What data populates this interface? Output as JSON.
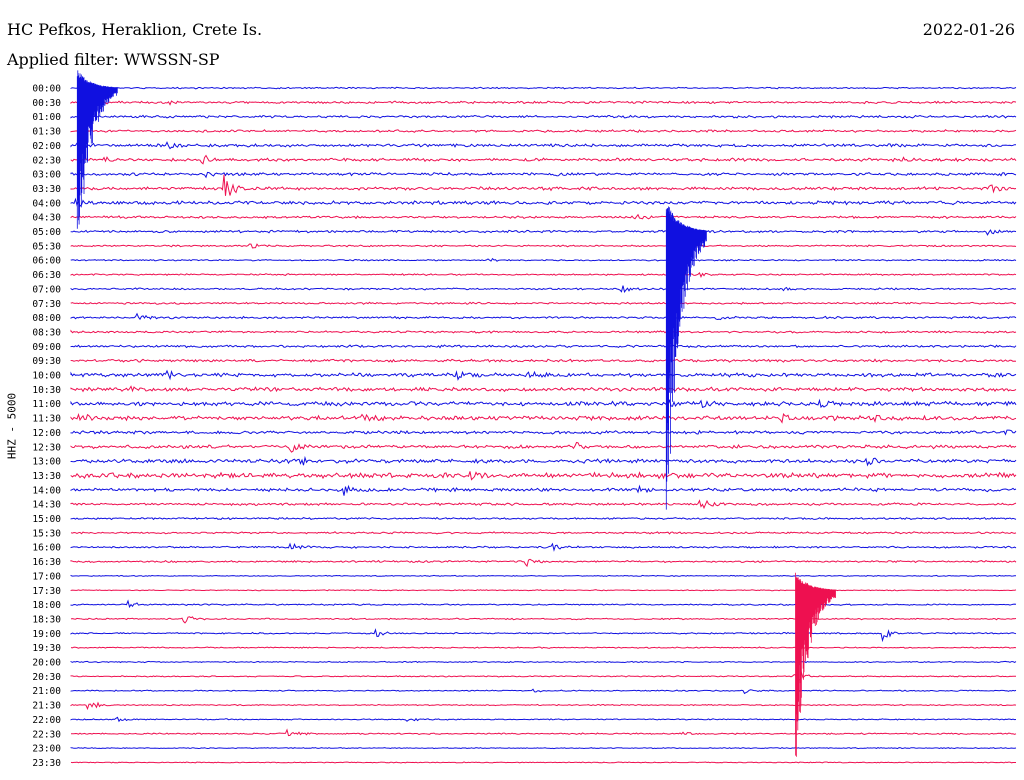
{
  "header": {
    "station": "HC Pefkos, Heraklion, Crete Is.",
    "filter": "Applied filter: WWSSN-SP",
    "date": "2022-01-26"
  },
  "chart_data": {
    "type": "line",
    "title": "HC Pefkos, Heraklion, Crete Is.",
    "subtitle": "Applied filter: WWSSN-SP",
    "date": "2022-01-26",
    "ylabel": "HHZ - 5000",
    "colors": {
      "even_row": "#1010e0",
      "odd_row": "#ee1050"
    },
    "rows": [
      {
        "label": "00:00",
        "noise": 0.6,
        "events": [
          {
            "t": 0.5,
            "amp": 1.0
          }
        ]
      },
      {
        "label": "00:30",
        "noise": 1.0,
        "events": [
          {
            "t": 0.5,
            "amp": 2.2
          },
          {
            "t": 3.2,
            "amp": 1.0
          }
        ]
      },
      {
        "label": "01:00",
        "noise": 1.0,
        "events": []
      },
      {
        "label": "01:30",
        "noise": 1.0,
        "events": []
      },
      {
        "label": "02:00",
        "noise": 1.3,
        "events": [
          {
            "t": 0.2,
            "amp": 3.0
          },
          {
            "t": 3.1,
            "amp": 3.2
          }
        ]
      },
      {
        "label": "02:30",
        "noise": 1.3,
        "events": [
          {
            "t": 1.1,
            "amp": 1.8
          },
          {
            "t": 3.0,
            "amp": 0.9
          },
          {
            "t": 4.2,
            "amp": 4.5
          },
          {
            "t": 26.5,
            "amp": 2.5
          }
        ]
      },
      {
        "label": "03:00",
        "noise": 1.2,
        "events": [
          {
            "t": 4.3,
            "amp": 2.5
          },
          {
            "t": 15.4,
            "amp": 1.8
          }
        ]
      },
      {
        "label": "03:30",
        "noise": 1.3,
        "events": [
          {
            "t": 4.9,
            "amp": 14.0
          },
          {
            "t": 15.0,
            "amp": 1.5
          },
          {
            "t": 29.2,
            "amp": 3.5
          }
        ]
      },
      {
        "label": "04:00",
        "noise": 1.5,
        "events": [
          {
            "t": 0.2,
            "amp": 4.0
          }
        ]
      },
      {
        "label": "04:30",
        "noise": 1.0,
        "events": [
          {
            "t": 17.9,
            "amp": 3.0
          }
        ]
      },
      {
        "label": "05:00",
        "noise": 1.0,
        "events": [
          {
            "t": 29.1,
            "amp": 3.0
          }
        ]
      },
      {
        "label": "05:30",
        "noise": 0.7,
        "events": [
          {
            "t": 5.7,
            "amp": 3.0
          }
        ]
      },
      {
        "label": "06:00",
        "noise": 0.6,
        "events": [
          {
            "t": 13.3,
            "amp": 2.0
          }
        ]
      },
      {
        "label": "06:30",
        "noise": 0.7,
        "events": [
          {
            "t": 20.0,
            "amp": 1.5
          }
        ]
      },
      {
        "label": "07:00",
        "noise": 0.8,
        "events": [
          {
            "t": 17.5,
            "amp": 3.5
          },
          {
            "t": 22.6,
            "amp": 2.0
          }
        ]
      },
      {
        "label": "07:30",
        "noise": 0.8,
        "events": []
      },
      {
        "label": "08:00",
        "noise": 0.9,
        "events": [
          {
            "t": 2.1,
            "amp": 3.5
          },
          {
            "t": 20.5,
            "amp": 2.0
          }
        ]
      },
      {
        "label": "08:30",
        "noise": 0.9,
        "events": []
      },
      {
        "label": "09:00",
        "noise": 1.0,
        "events": []
      },
      {
        "label": "09:30",
        "noise": 1.1,
        "events": []
      },
      {
        "label": "10:00",
        "noise": 1.6,
        "events": [
          {
            "t": 3.1,
            "amp": 2.5
          },
          {
            "t": 12.2,
            "amp": 6.0
          },
          {
            "t": 14.5,
            "amp": 4.0
          }
        ]
      },
      {
        "label": "10:30",
        "noise": 1.6,
        "events": [
          {
            "t": 1.9,
            "amp": 3.0
          }
        ]
      },
      {
        "label": "11:00",
        "noise": 1.8,
        "events": [
          {
            "t": 19.0,
            "amp": 3.0
          },
          {
            "t": 20.0,
            "amp": 3.0
          },
          {
            "t": 23.8,
            "amp": 2.5
          }
        ]
      },
      {
        "label": "11:30",
        "noise": 1.8,
        "events": [
          {
            "t": 0.3,
            "amp": 3.0
          },
          {
            "t": 9.3,
            "amp": 2.0
          },
          {
            "t": 22.6,
            "amp": 3.5
          },
          {
            "t": 25.5,
            "amp": 3.0
          }
        ]
      },
      {
        "label": "12:00",
        "noise": 1.3,
        "events": [
          {
            "t": 29.7,
            "amp": 3.0
          }
        ]
      },
      {
        "label": "12:30",
        "noise": 1.4,
        "events": [
          {
            "t": 7.0,
            "amp": 5.0
          },
          {
            "t": 16.0,
            "amp": 3.5
          }
        ]
      },
      {
        "label": "13:00",
        "noise": 1.7,
        "events": [
          {
            "t": 7.3,
            "amp": 3.5
          },
          {
            "t": 25.3,
            "amp": 4.0
          }
        ]
      },
      {
        "label": "13:30",
        "noise": 2.2,
        "events": [
          {
            "t": 12.7,
            "amp": 4.0
          }
        ]
      },
      {
        "label": "14:00",
        "noise": 1.4,
        "events": [
          {
            "t": 8.7,
            "amp": 5.0
          },
          {
            "t": 18.0,
            "amp": 2.5
          }
        ]
      },
      {
        "label": "14:30",
        "noise": 1.0,
        "events": [
          {
            "t": 20.0,
            "amp": 7.0
          }
        ]
      },
      {
        "label": "15:00",
        "noise": 0.8,
        "events": []
      },
      {
        "label": "15:30",
        "noise": 0.8,
        "events": []
      },
      {
        "label": "16:00",
        "noise": 0.8,
        "events": [
          {
            "t": 7.0,
            "amp": 4.0
          },
          {
            "t": 15.3,
            "amp": 3.0
          }
        ]
      },
      {
        "label": "16:30",
        "noise": 0.8,
        "events": [
          {
            "t": 14.5,
            "amp": 5.0
          }
        ]
      },
      {
        "label": "17:00",
        "noise": 0.4,
        "events": []
      },
      {
        "label": "17:30",
        "noise": 0.4,
        "events": []
      },
      {
        "label": "18:00",
        "noise": 0.6,
        "events": [
          {
            "t": 1.8,
            "amp": 4.0
          }
        ]
      },
      {
        "label": "18:30",
        "noise": 0.6,
        "events": [
          {
            "t": 3.6,
            "amp": 4.0
          }
        ]
      },
      {
        "label": "19:00",
        "noise": 0.6,
        "events": [
          {
            "t": 9.7,
            "amp": 4.0
          },
          {
            "t": 25.8,
            "amp": 7.0
          }
        ]
      },
      {
        "label": "19:30",
        "noise": 0.5,
        "events": []
      },
      {
        "label": "20:00",
        "noise": 0.5,
        "events": []
      },
      {
        "label": "20:30",
        "noise": 0.5,
        "events": [
          {
            "t": 23.0,
            "amp": 9.0
          }
        ]
      },
      {
        "label": "21:00",
        "noise": 0.5,
        "events": [
          {
            "t": 14.7,
            "amp": 2.0
          },
          {
            "t": 21.4,
            "amp": 3.0
          }
        ]
      },
      {
        "label": "21:30",
        "noise": 0.5,
        "events": [
          {
            "t": 0.6,
            "amp": 5.0
          }
        ]
      },
      {
        "label": "22:00",
        "noise": 0.5,
        "events": [
          {
            "t": 1.4,
            "amp": 3.0
          },
          {
            "t": 10.7,
            "amp": 2.0
          }
        ]
      },
      {
        "label": "22:30",
        "noise": 0.6,
        "events": [
          {
            "t": 6.9,
            "amp": 4.0
          },
          {
            "t": 19.4,
            "amp": 2.0
          }
        ]
      },
      {
        "label": "23:00",
        "noise": 0.4,
        "events": []
      },
      {
        "label": "23:30",
        "noise": 0.4,
        "events": []
      }
    ],
    "large_events": [
      {
        "row_start": 0,
        "t": 0.2,
        "rows_span": 13
      },
      {
        "row_start": 10,
        "t": 18.9,
        "rows_span": 22
      },
      {
        "row_start": 35,
        "t": 23.0,
        "rows_span": 13
      }
    ]
  }
}
